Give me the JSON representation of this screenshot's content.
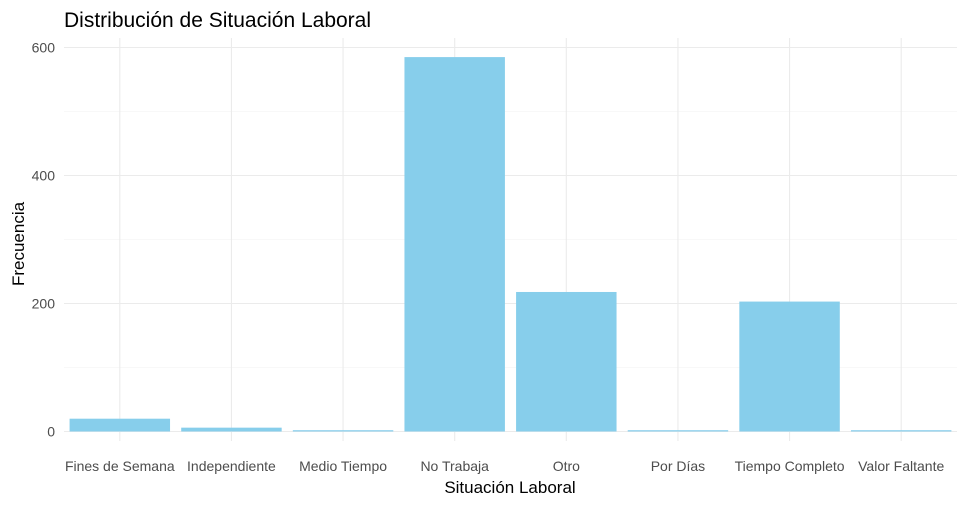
{
  "chart_data": {
    "type": "bar",
    "title": "Distribución de Situación Laboral",
    "xlabel": "Situación Laboral",
    "ylabel": "Frecuencia",
    "categories": [
      "Fines de Semana",
      "Independiente",
      "Medio Tiempo",
      "No Trabaja",
      "Otro",
      "Por Días",
      "Tiempo Completo",
      "Valor Faltante"
    ],
    "values": [
      20,
      6,
      2,
      585,
      218,
      2,
      203,
      2
    ],
    "yticks": [
      0,
      200,
      400,
      600
    ],
    "ylim": [
      0,
      615
    ],
    "bar_color": "#87CEEB",
    "grid": true,
    "legend": "none"
  }
}
